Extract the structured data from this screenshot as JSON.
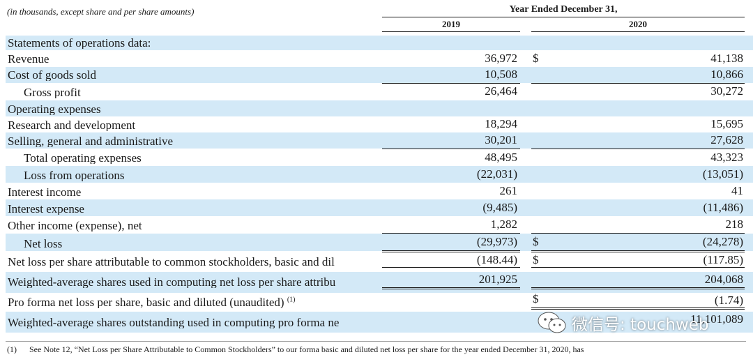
{
  "header": {
    "caption": "(in thousands, except share and per share amounts)",
    "period": "Year Ended December 31,",
    "year_2019": "2019",
    "year_2020": "2020"
  },
  "rows": [
    {
      "label": "Statements of operations data:",
      "v2019": "",
      "v2020": ""
    },
    {
      "label": "Revenue",
      "v2019": "36,972",
      "d": "$",
      "v2020": "41,138"
    },
    {
      "label": "Cost of goods sold",
      "v2019": "10,508",
      "v2020": "10,866"
    },
    {
      "label": "Gross profit",
      "v2019": "26,464",
      "v2020": "30,272"
    },
    {
      "label": "Operating expenses",
      "v2019": "",
      "v2020": ""
    },
    {
      "label": "Research and development",
      "v2019": "18,294",
      "v2020": "15,695"
    },
    {
      "label": "Selling, general and administrative",
      "v2019": "30,201",
      "v2020": "27,628"
    },
    {
      "label": "Total operating expenses",
      "v2019": "48,495",
      "v2020": "43,323"
    },
    {
      "label": "Loss from operations",
      "v2019": "(22,031)",
      "v2020": "(13,051)"
    },
    {
      "label": "Interest income",
      "v2019": "261",
      "v2020": "41"
    },
    {
      "label": "Interest expense",
      "v2019": "(9,485)",
      "v2020": "(11,486)"
    },
    {
      "label": "Other income (expense), net",
      "v2019": "1,282",
      "v2020": "218"
    },
    {
      "label": "Net loss",
      "v2019": "(29,973)",
      "d": "$",
      "v2020": "(24,278)"
    },
    {
      "label": "Net loss per share attributable to common stockholders, basic and dil",
      "v2019": "(148.44)",
      "d": "$",
      "v2020": "(117.85)"
    },
    {
      "label": "Weighted-average shares used in computing net loss per share attribu",
      "v2019": "201,925",
      "v2020": "204,068"
    },
    {
      "label": "Pro forma net loss per share, basic and diluted (unaudited)",
      "sup": "(1)",
      "v2019": "",
      "d": "$",
      "v2020": "(1.74)"
    },
    {
      "label": "Weighted-average shares outstanding used in computing pro forma ne",
      "v2019": "",
      "v2020": "11,101,089"
    }
  ],
  "watermark": {
    "text": "微信号: touchweb"
  },
  "footnote": {
    "num": "(1)",
    "text": "See Note 12, “Net Loss per Share Attributable to Common Stockholders” to our forma basic and diluted net loss per share for the year ended December 31, 2020, has"
  }
}
